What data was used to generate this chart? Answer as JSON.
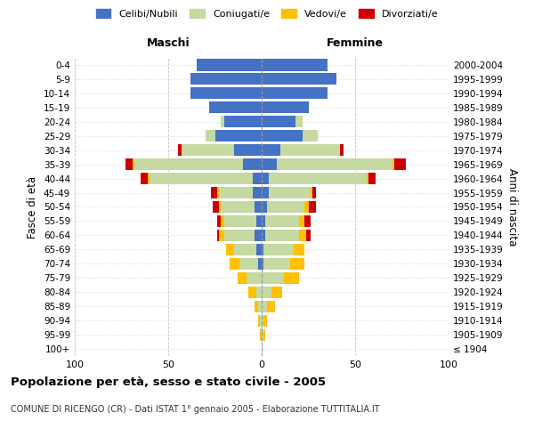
{
  "age_groups": [
    "100+",
    "95-99",
    "90-94",
    "85-89",
    "80-84",
    "75-79",
    "70-74",
    "65-69",
    "60-64",
    "55-59",
    "50-54",
    "45-49",
    "40-44",
    "35-39",
    "30-34",
    "25-29",
    "20-24",
    "15-19",
    "10-14",
    "5-9",
    "0-4"
  ],
  "birth_years": [
    "≤ 1904",
    "1905-1909",
    "1910-1914",
    "1915-1919",
    "1920-1924",
    "1925-1929",
    "1930-1934",
    "1935-1939",
    "1940-1944",
    "1945-1949",
    "1950-1954",
    "1955-1959",
    "1960-1964",
    "1965-1969",
    "1970-1974",
    "1975-1979",
    "1980-1984",
    "1985-1989",
    "1990-1994",
    "1995-1999",
    "2000-2004"
  ],
  "colors": {
    "celibe": "#4472c4",
    "coniugato": "#c5d9a0",
    "vedovo": "#ffc000",
    "divorziato": "#cc0000"
  },
  "maschi": {
    "celibe": [
      0,
      0,
      0,
      0,
      0,
      0,
      2,
      3,
      4,
      3,
      4,
      5,
      5,
      10,
      15,
      25,
      20,
      28,
      38,
      38,
      35
    ],
    "coniugato": [
      0,
      0,
      1,
      2,
      3,
      8,
      10,
      12,
      16,
      17,
      18,
      18,
      55,
      58,
      28,
      5,
      2,
      0,
      0,
      0,
      0
    ],
    "vedovo": [
      0,
      1,
      1,
      2,
      4,
      5,
      5,
      4,
      3,
      2,
      1,
      1,
      1,
      1,
      0,
      0,
      0,
      0,
      0,
      0,
      0
    ],
    "divorziato": [
      0,
      0,
      0,
      0,
      0,
      0,
      0,
      0,
      1,
      2,
      3,
      3,
      4,
      4,
      2,
      0,
      0,
      0,
      0,
      0,
      0
    ]
  },
  "femmine": {
    "celibe": [
      0,
      0,
      0,
      0,
      0,
      0,
      1,
      1,
      2,
      2,
      3,
      4,
      4,
      8,
      10,
      22,
      18,
      25,
      35,
      40,
      35
    ],
    "coniugato": [
      0,
      1,
      1,
      3,
      5,
      12,
      14,
      16,
      18,
      18,
      20,
      22,
      52,
      62,
      32,
      8,
      4,
      0,
      0,
      0,
      0
    ],
    "vedovo": [
      0,
      1,
      2,
      4,
      6,
      8,
      8,
      6,
      4,
      3,
      2,
      1,
      1,
      1,
      0,
      0,
      0,
      0,
      0,
      0,
      0
    ],
    "divorziato": [
      0,
      0,
      0,
      0,
      0,
      0,
      0,
      0,
      2,
      3,
      4,
      2,
      4,
      6,
      2,
      0,
      0,
      0,
      0,
      0,
      0
    ]
  },
  "title": "Popolazione per età, sesso e stato civile - 2005",
  "subtitle": "COMUNE DI RICENGO (CR) - Dati ISTAT 1° gennaio 2005 - Elaborazione TUTTITALIA.IT",
  "xlabel_left": "Maschi",
  "xlabel_right": "Femmine",
  "ylabel_left": "Fasce di età",
  "ylabel_right": "Anni di nascita",
  "xlim": 100,
  "legend_labels": [
    "Celibi/Nubili",
    "Coniugati/e",
    "Vedovi/e",
    "Divorziati/e"
  ]
}
